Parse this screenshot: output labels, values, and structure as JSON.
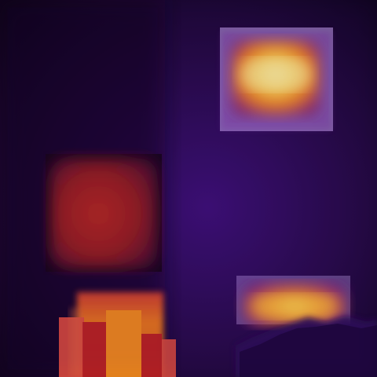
{
  "image": {
    "kind": "thermal-heatmap",
    "palette": "inferno",
    "colors": {
      "background_dark": "#0b0318",
      "background_purple": "#3a0f6e",
      "dark_red": "#7a1f1a",
      "red": "#c8261c",
      "orange": "#f07a18",
      "yellow": "#ffe35a",
      "pale_yellow": "#fff3a0",
      "box_fill": "#d7b7ff"
    },
    "regions": [
      {
        "name": "hot-region-top-right",
        "intensity": "high"
      },
      {
        "name": "warm-region-left",
        "intensity": "medium"
      },
      {
        "name": "warm-region-bottom-left",
        "intensity": "medium-high"
      },
      {
        "name": "hot-region-bottom-right",
        "intensity": "high"
      }
    ]
  }
}
